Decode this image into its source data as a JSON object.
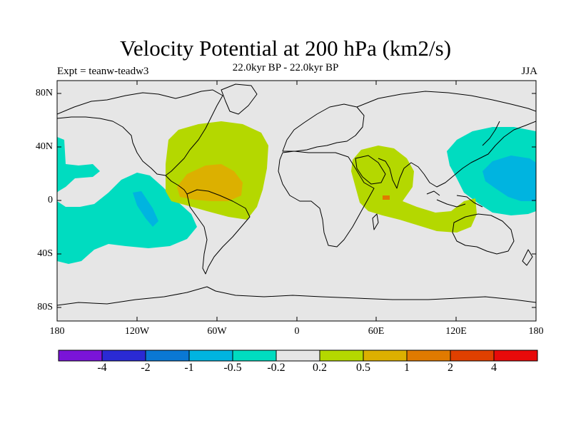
{
  "title": "Velocity Potential at 200 hPa (km2/s)",
  "subtitle": "22.0kyr BP - 22.0kyr BP",
  "experiment_label": "Expt = teanw-teadw3",
  "season": "JJA",
  "y_axis_ticks": [
    "80N",
    "40N",
    "0",
    "40S",
    "80S"
  ],
  "x_axis_ticks": [
    "180",
    "120W",
    "60W",
    "0",
    "60E",
    "120E",
    "180"
  ],
  "colorbar": {
    "colors": [
      "#7a14d8",
      "#2a2ad4",
      "#0a78d4",
      "#00b4e0",
      "#00dcc0",
      "#e6e6e6",
      "#b4d800",
      "#dcb000",
      "#e07a00",
      "#e04000",
      "#e80a0a"
    ],
    "labels": [
      "-4",
      "-2",
      "-1",
      "-0.5",
      "-0.2",
      "0.2",
      "0.5",
      "1",
      "2",
      "4"
    ]
  },
  "map_colors": {
    "background": "#e6e6e6",
    "neg_weak": "#00dcc0",
    "neg_mid": "#00b4e0",
    "pos_weak": "#b4d800",
    "pos_mid": "#dcb000",
    "pos_strong": "#e07a00",
    "coast": "#000000"
  }
}
